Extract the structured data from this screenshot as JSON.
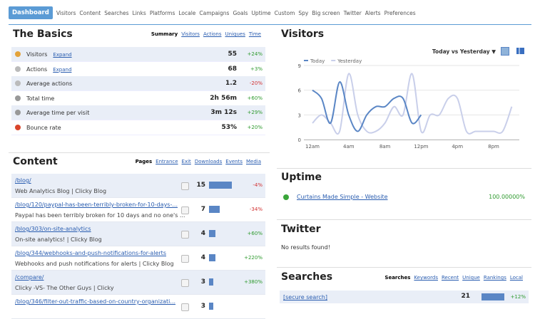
{
  "nav": [
    "Dashboard",
    "Visitors",
    "Content",
    "Searches",
    "Links",
    "Platforms",
    "Locale",
    "Campaigns",
    "Goals",
    "Uptime",
    "Custom",
    "Spy",
    "Big screen",
    "Twitter",
    "Alerts",
    "Preferences"
  ],
  "basics": {
    "title": "The Basics",
    "tabs": [
      "Summary",
      "Visitors",
      "Actions",
      "Uniques",
      "Time"
    ],
    "rows": [
      {
        "label": "Visitors",
        "link": "Expand",
        "value": "55",
        "change": "+24%"
      },
      {
        "label": "Actions",
        "link": "Expand",
        "value": "68",
        "change": "+3%"
      },
      {
        "label": "Average actions",
        "value": "1.2",
        "change": "-20%"
      },
      {
        "label": "Total time",
        "value": "2h 56m",
        "change": "+60%"
      },
      {
        "label": "Average time per visit",
        "value": "3m 12s",
        "change": "+29%"
      },
      {
        "label": "Bounce rate",
        "value": "53%",
        "change": "+20%"
      }
    ]
  },
  "content": {
    "title": "Content",
    "tabs": [
      "Pages",
      "Entrance",
      "Exit",
      "Downloads",
      "Events",
      "Media"
    ],
    "rows": [
      {
        "path": "/blog/",
        "title": "Web Analytics Blog | Clicky Blog",
        "value": 15,
        "change": "-4%"
      },
      {
        "path": "/blog/120/paypal-has-been-terribly-broken-for-10-days-...",
        "title": "Paypal has been terribly broken for 10 days and no one's ...",
        "value": 7,
        "change": "-34%"
      },
      {
        "path": "/blog/303/on-site-analytics",
        "title": "On-site analytics! | Clicky Blog",
        "value": 4,
        "change": "+60%"
      },
      {
        "path": "/blog/344/webhooks-and-push-notifications-for-alerts",
        "title": "Webhooks and push notifications for alerts | Clicky Blog",
        "value": 4,
        "change": "+220%"
      },
      {
        "path": "/compare/",
        "title": "Clicky -VS- The Other Guys | Clicky",
        "value": 3,
        "change": "+380%"
      },
      {
        "path": "/blog/346/filter-out-traffic-based-on-country-organizati...",
        "value": 3
      }
    ]
  },
  "visitors": {
    "title": "Visitors",
    "selector": "Today vs Yesterday ▼",
    "chart": {
      "type": "line",
      "categories": [
        "12am",
        null,
        null,
        null,
        "4am",
        null,
        null,
        null,
        "8am",
        null,
        null,
        null,
        "12pm",
        null,
        null,
        null,
        "4pm",
        null,
        null,
        null,
        "8pm",
        null,
        null,
        null
      ],
      "series": [
        {
          "name": "Today",
          "color": "#5a86c5",
          "values": [
            6,
            5,
            2,
            7,
            3,
            1,
            3,
            4,
            4,
            5,
            5,
            2,
            3,
            null,
            null,
            null,
            null,
            null,
            null,
            null,
            null,
            null,
            null,
            null
          ]
        },
        {
          "name": "Yesterday",
          "color": "#c9cfea",
          "values": [
            2,
            3,
            2,
            1,
            8,
            3,
            1,
            1,
            2,
            4,
            3,
            8,
            1,
            3,
            3,
            5,
            5,
            1,
            1,
            1,
            1,
            1,
            4,
            null
          ]
        }
      ],
      "ylim": [
        0,
        9
      ],
      "yticks": [
        0,
        3,
        6,
        9
      ],
      "grid": true
    }
  },
  "uptime": {
    "title": "Uptime",
    "site": "Curtains Made Simple - Website",
    "value": "100.00000%"
  },
  "twitter": {
    "title": "Twitter",
    "message": "No results found!"
  },
  "searches": {
    "title": "Searches",
    "tabs": [
      "Searches",
      "Keywords",
      "Recent",
      "Unique",
      "Rankings",
      "Local"
    ],
    "rows": [
      {
        "term": "[secure search]",
        "value": 21,
        "change": "+12%"
      }
    ]
  }
}
